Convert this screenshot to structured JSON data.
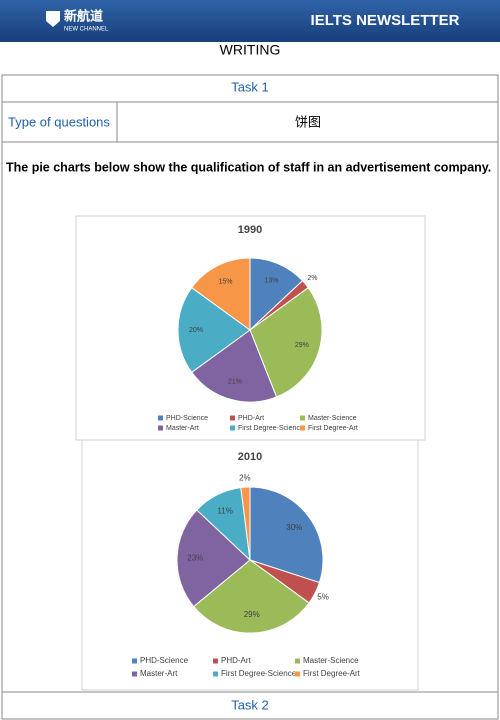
{
  "header": {
    "logo_name": "新航道",
    "logo_sub": "NEW CHANNEL",
    "title": "IELTS NEWSLETTER"
  },
  "section": "WRITING",
  "table": {
    "task1": "Task 1",
    "type_label": "Type of questions",
    "type_value": "饼图",
    "task2": "Task 2"
  },
  "prompt": "The pie charts below show the qualification of staff in an advertisement company.",
  "chart_data": [
    {
      "type": "pie",
      "title": "1990",
      "categories": [
        "PHD-Science",
        "PHD-Art",
        "Master-Science",
        "Master-Art",
        "First Degree-Science",
        "First Degree-Art"
      ],
      "values": [
        13,
        2,
        29,
        21,
        20,
        15
      ],
      "value_labels": [
        "13%",
        "2%",
        "29%",
        "21%",
        "20%",
        "15%"
      ],
      "colors": [
        "#4f81bd",
        "#c0504d",
        "#9bbb59",
        "#8064a2",
        "#4bacc6",
        "#f79646"
      ]
    },
    {
      "type": "pie",
      "title": "2010",
      "categories": [
        "PHD-Science",
        "PHD-Art",
        "Master-Science",
        "Master-Art",
        "First Degree-Science",
        "First Degree-Art"
      ],
      "values": [
        30,
        5,
        29,
        23,
        11,
        2
      ],
      "value_labels": [
        "30%",
        "5%",
        "29%",
        "23%",
        "11%",
        "2%"
      ],
      "colors": [
        "#4f81bd",
        "#c0504d",
        "#9bbb59",
        "#8064a2",
        "#4bacc6",
        "#f79646"
      ]
    }
  ]
}
